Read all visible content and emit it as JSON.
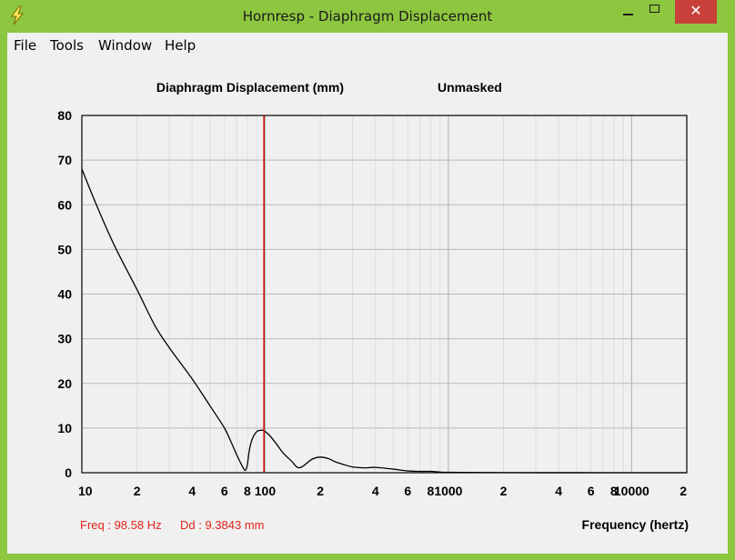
{
  "window": {
    "title": "Hornresp - Diaphragm Displacement",
    "close_symbol": "✕",
    "accent": "#8dc63f"
  },
  "menu": [
    "File",
    "Tools",
    "Window",
    "Help"
  ],
  "readout": {
    "freq": "Freq : 98.58 Hz",
    "dd": "Dd : 9.3843 mm"
  },
  "chart_data": {
    "type": "line",
    "title": "Diaphragm Displacement (mm)",
    "mask_label": "Unmasked",
    "xlabel": "Frequency (hertz)",
    "ylabel": "",
    "xscale": "log",
    "xlim": [
      10,
      20000
    ],
    "ylim": [
      0,
      80
    ],
    "yticks": [
      0,
      10,
      20,
      30,
      40,
      50,
      60,
      70,
      80
    ],
    "xtick_labels": [
      {
        "value": 10,
        "label": "10"
      },
      {
        "value": 20,
        "label": "2"
      },
      {
        "value": 40,
        "label": "4"
      },
      {
        "value": 60,
        "label": "6"
      },
      {
        "value": 80,
        "label": "8"
      },
      {
        "value": 100,
        "label": "100"
      },
      {
        "value": 200,
        "label": "2"
      },
      {
        "value": 400,
        "label": "4"
      },
      {
        "value": 600,
        "label": "6"
      },
      {
        "value": 800,
        "label": "8"
      },
      {
        "value": 1000,
        "label": "1000"
      },
      {
        "value": 2000,
        "label": "2"
      },
      {
        "value": 4000,
        "label": "4"
      },
      {
        "value": 6000,
        "label": "6"
      },
      {
        "value": 8000,
        "label": "8"
      },
      {
        "value": 10000,
        "label": "10000"
      },
      {
        "value": 20000,
        "label": "2"
      }
    ],
    "grid": true,
    "cursor_frequency": 98.58,
    "series": [
      {
        "color": "#000000",
        "x": [
          10,
          12,
          15,
          20,
          25,
          30,
          40,
          50,
          60,
          65,
          70,
          75,
          78,
          80,
          82,
          85,
          90,
          95,
          98.58,
          105,
          115,
          125,
          140,
          150,
          160,
          180,
          200,
          220,
          240,
          260,
          300,
          350,
          400,
          500,
          600,
          700,
          800,
          900,
          1000,
          1500,
          2000,
          5000,
          10000,
          20000
        ],
        "y": [
          68,
          60,
          51,
          41,
          33,
          28,
          21,
          15,
          10,
          7,
          4,
          1.5,
          0.5,
          1.8,
          5,
          7.5,
          9.2,
          9.5,
          9.4,
          8.5,
          6.5,
          4.5,
          2.5,
          1.2,
          1.4,
          3,
          3.5,
          3.2,
          2.5,
          2,
          1.3,
          1.1,
          1.2,
          0.8,
          0.4,
          0.3,
          0.3,
          0.15,
          0.1,
          0.05,
          0.03,
          0.01,
          0,
          0
        ]
      }
    ],
    "colors": {
      "curve": "#000000",
      "cursor": "#cc0000",
      "grid_major": "#b8b8b8",
      "grid_minor": "#dedede",
      "readout": "#e0241b"
    }
  }
}
